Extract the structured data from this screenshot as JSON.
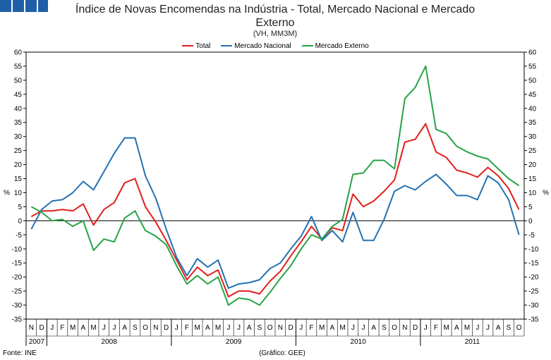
{
  "header": {
    "logo_name": "gee-logo",
    "title_line1": "Índice de Novas Encomendas na Indústria - Total, Mercado Nacional e Mercado",
    "title_line2": "Externo",
    "subtitle": "(VH, MM3M)"
  },
  "footer": {
    "source": "Fonte: INE",
    "credit": "(Gráfico: GEE)"
  },
  "colors": {
    "logo": "#1f5fa8",
    "total": "#e0201b",
    "nacional": "#2272b4",
    "externo": "#27a346"
  },
  "chart_data": {
    "type": "line",
    "title": "Índice de Novas Encomendas na Indústria - Total, Mercado Nacional e Mercado Externo",
    "subtitle": "(VH, MM3M)",
    "ylabel": "%",
    "ylabel_right": "%",
    "ylim": [
      -35,
      60
    ],
    "yticks": [
      60,
      55,
      50,
      45,
      40,
      35,
      30,
      25,
      20,
      15,
      10,
      5,
      0,
      -5,
      -10,
      -15,
      -20,
      -25,
      -30,
      -35
    ],
    "month_labels": [
      "N",
      "D",
      "J",
      "F",
      "M",
      "A",
      "M",
      "J",
      "J",
      "A",
      "S",
      "O",
      "N",
      "D",
      "J",
      "F",
      "M",
      "A",
      "M",
      "J",
      "J",
      "A",
      "S",
      "O",
      "N",
      "D",
      "J",
      "F",
      "M",
      "A",
      "M",
      "J",
      "J",
      "A",
      "S",
      "O",
      "N",
      "D",
      "J",
      "F",
      "M",
      "A",
      "M",
      "J",
      "J",
      "A",
      "S",
      "O"
    ],
    "years": [
      {
        "label": "2007",
        "start": 0,
        "count": 2
      },
      {
        "label": "2008",
        "start": 2,
        "count": 12
      },
      {
        "label": "2009",
        "start": 14,
        "count": 12
      },
      {
        "label": "2010",
        "start": 26,
        "count": 12
      },
      {
        "label": "2011",
        "start": 38,
        "count": 10
      }
    ],
    "legend_position": "top-center",
    "series": [
      {
        "name": "Total",
        "color": "#e0201b",
        "values": [
          1.5,
          3.5,
          3.5,
          4.0,
          3.5,
          6.0,
          -1.5,
          4.0,
          6.5,
          13.5,
          15.0,
          5.0,
          -0.5,
          -7.0,
          -14.0,
          -21.0,
          -16.5,
          -19.5,
          -17.5,
          -27.0,
          -25.0,
          -25.0,
          -26.0,
          -21.5,
          -18.0,
          -12.5,
          -7.5,
          -2.0,
          -6.5,
          -2.5,
          -3.5,
          9.5,
          5.0,
          7.0,
          10.5,
          14.5,
          28.0,
          29.0,
          34.5,
          24.5,
          22.5,
          18.0,
          17.0,
          15.5,
          19.0,
          16.0,
          11.5,
          4.0
        ]
      },
      {
        "name": "Mercado Nacional",
        "color": "#2272b4",
        "values": [
          -3.0,
          4.0,
          7.0,
          7.5,
          10.0,
          14.0,
          11.0,
          17.5,
          24.0,
          29.5,
          29.5,
          16.0,
          8.0,
          -3.0,
          -13.0,
          -19.5,
          -13.5,
          -16.5,
          -14.0,
          -24.0,
          -22.5,
          -22.0,
          -21.0,
          -17.0,
          -15.0,
          -10.0,
          -5.5,
          1.5,
          -7.0,
          -3.5,
          -7.5,
          3.0,
          -7.0,
          -7.0,
          0.5,
          10.5,
          12.5,
          11.0,
          14.0,
          16.5,
          13.0,
          9.0,
          9.0,
          7.5,
          16.0,
          13.5,
          7.5,
          -5.0
        ]
      },
      {
        "name": "Mercado Externo",
        "color": "#27a346",
        "values": [
          5.0,
          3.0,
          0.0,
          0.5,
          -2.0,
          0.0,
          -10.5,
          -6.5,
          -7.5,
          1.0,
          3.5,
          -3.5,
          -5.5,
          -8.5,
          -16.0,
          -22.5,
          -19.5,
          -22.5,
          -20.0,
          -30.0,
          -27.5,
          -28.0,
          -30.0,
          -25.5,
          -20.5,
          -16.0,
          -10.0,
          -5.0,
          -6.5,
          -2.0,
          0.5,
          16.5,
          17.0,
          21.5,
          21.5,
          18.5,
          43.5,
          47.5,
          55.0,
          32.5,
          31.0,
          26.5,
          24.5,
          23.0,
          22.0,
          18.5,
          15.0,
          12.5
        ]
      }
    ]
  }
}
